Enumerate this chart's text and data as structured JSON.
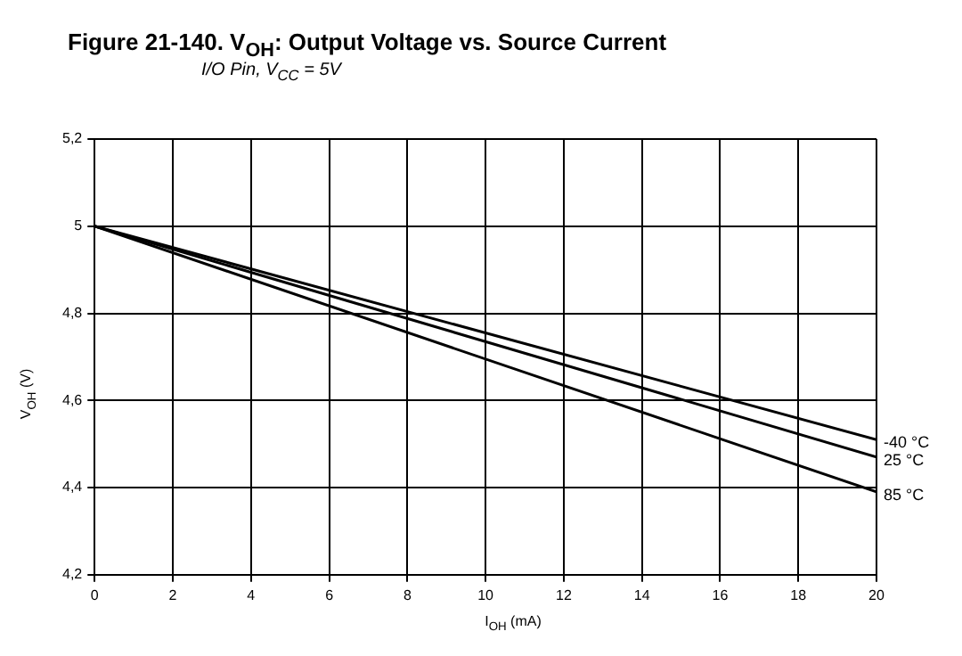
{
  "chart_data": {
    "type": "line",
    "title": "Figure 21-140. V$_{OH}$: Output Voltage vs. Source Current",
    "subtitle": "I/O Pin, V$_{CC}$ = 5V",
    "xlabel": "I$_{OH}$ (mA)",
    "ylabel": "V$_{OH}$ (V)",
    "x": [
      0,
      20
    ],
    "series": [
      {
        "name": "-40 °C",
        "color": "#000000",
        "values": [
          5,
          4.51
        ]
      },
      {
        "name": "25 °C",
        "color": "#000000",
        "values": [
          5,
          4.47
        ]
      },
      {
        "name": "85 °C",
        "color": "#000000",
        "values": [
          5,
          4.39
        ]
      }
    ],
    "xlim": [
      0,
      20
    ],
    "xticks": [
      0,
      2,
      4,
      6,
      8,
      10,
      12,
      14,
      16,
      18,
      20
    ],
    "ylim": [
      4.2,
      5.2
    ],
    "yticks": [
      {
        "value": 4.2,
        "label": "4,2"
      },
      {
        "value": 4.4,
        "label": "4,4"
      },
      {
        "value": 4.6,
        "label": "4,6"
      },
      {
        "value": 4.8,
        "label": "4,8"
      },
      5,
      {
        "value": 5.2,
        "label": "5,2"
      }
    ],
    "grid": true,
    "legend": false,
    "marker": "none",
    "line_style": "solid"
  }
}
